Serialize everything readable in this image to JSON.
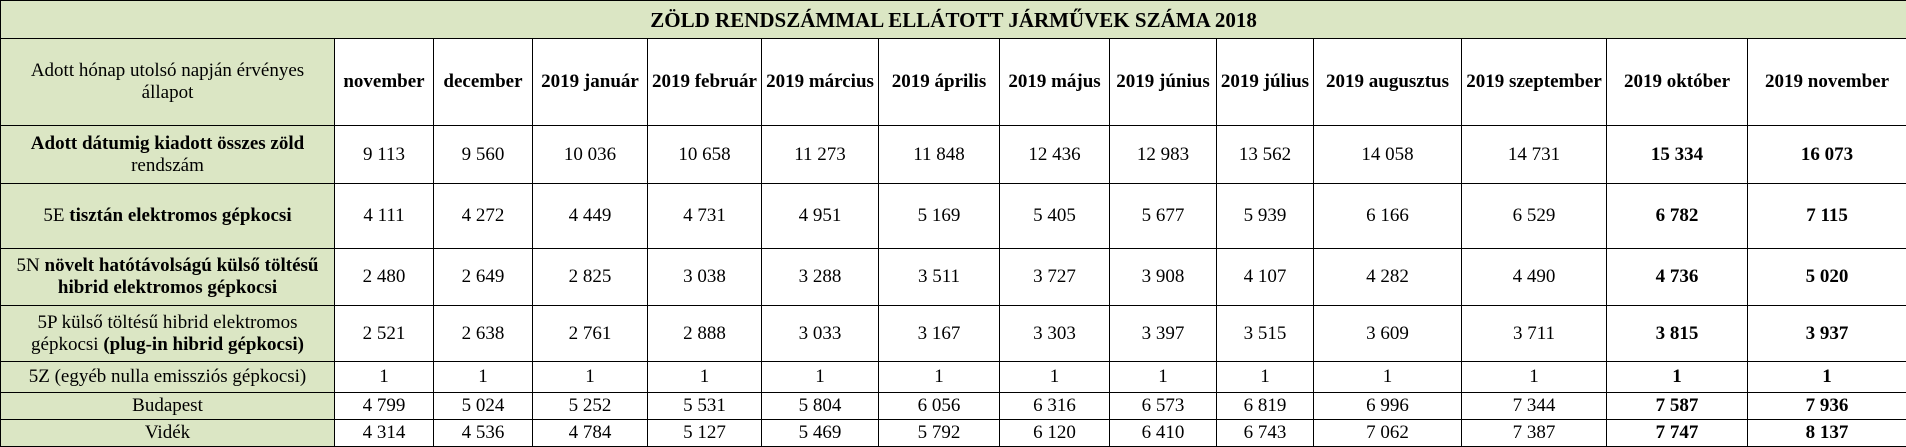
{
  "title": "ZÖLD RENDSZÁMMAL ELLÁTOTT JÁRMŰVEK SZÁMA 2018",
  "header_label": "Adott hónap utolsó napján érvényes állapot",
  "months": [
    "november",
    "december",
    "2019 január",
    "2019 február",
    "2019 március",
    "2019 április",
    "2019 május",
    "2019 június",
    "2019 július",
    "2019 augusztus",
    "2019 szeptember",
    "2019 október",
    "2019 november"
  ],
  "rows": [
    {
      "label_parts": [
        {
          "text": "Adott dátumig kiadott összes zöld",
          "bold": true
        },
        {
          "text": " rendszám",
          "bold": false
        }
      ],
      "values": [
        "9 113",
        "9 560",
        "10 036",
        "10 658",
        "11 273",
        "11 848",
        "12 436",
        "12 983",
        "13 562",
        "14 058",
        "14 731",
        "15 334",
        "16 073"
      ]
    },
    {
      "label_parts": [
        {
          "text": "5E ",
          "bold": false
        },
        {
          "text": "tisztán elektromos gépkocsi",
          "bold": true
        }
      ],
      "values": [
        "4 111",
        "4 272",
        "4 449",
        "4 731",
        "4 951",
        "5 169",
        "5 405",
        "5 677",
        "5 939",
        "6 166",
        "6 529",
        "6 782",
        "7 115"
      ]
    },
    {
      "label_parts": [
        {
          "text": "5N ",
          "bold": false
        },
        {
          "text": "növelt hatótávolságú külső töltésű hibrid elektromos gépkocsi",
          "bold": true
        }
      ],
      "values": [
        "2 480",
        "2 649",
        "2 825",
        "3 038",
        "3 288",
        "3 511",
        "3 727",
        "3 908",
        "4 107",
        "4 282",
        "4 490",
        "4 736",
        "5 020"
      ]
    },
    {
      "label_parts": [
        {
          "text": "5P külső töltésű hibrid elektromos gépkocsi ",
          "bold": false
        },
        {
          "text": "(plug-in hibrid gépkocsi)",
          "bold": true
        }
      ],
      "values": [
        "2 521",
        "2 638",
        "2 761",
        "2 888",
        "3 033",
        "3 167",
        "3 303",
        "3 397",
        "3 515",
        "3 609",
        "3 711",
        "3 815",
        "3 937"
      ]
    },
    {
      "label_parts": [
        {
          "text": "5Z (egyéb nulla emissziós gépkocsi)",
          "bold": false
        }
      ],
      "values": [
        "1",
        "1",
        "1",
        "1",
        "1",
        "1",
        "1",
        "1",
        "1",
        "1",
        "1",
        "1",
        "1"
      ]
    },
    {
      "label_parts": [
        {
          "text": "Budapest",
          "bold": false
        }
      ],
      "values": [
        "4 799",
        "5 024",
        "5 252",
        "5 531",
        "5 804",
        "6 056",
        "6 316",
        "6 573",
        "6 819",
        "6 996",
        "7 344",
        "7 587",
        "7 936"
      ]
    },
    {
      "label_parts": [
        {
          "text": "Vidék",
          "bold": false
        }
      ],
      "values": [
        "4 314",
        "4 536",
        "4 784",
        "5 127",
        "5 469",
        "5 792",
        "6 120",
        "6 410",
        "6 743",
        "7 062",
        "7 387",
        "7 747",
        "8 137"
      ]
    }
  ]
}
